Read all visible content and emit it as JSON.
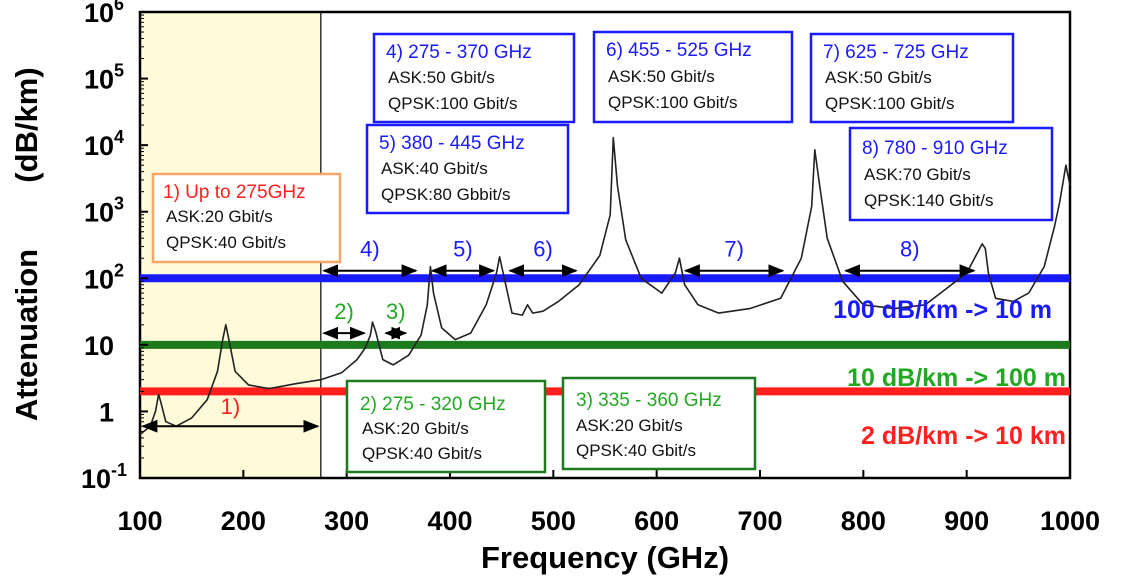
{
  "colors": {
    "allocated_band": "#fffad8",
    "curve": "#222222",
    "line_100": "#1a1aff",
    "line_10": "#1e7a1e",
    "line_2": "#ff1f1f",
    "box_blue": "#1a1aff",
    "box_green": "#1e7a1e",
    "box_orange": "#f4a66b",
    "text_red": "#ff2020",
    "text_blue": "#1a1aff",
    "text_green": "#22a822"
  },
  "chart_data": {
    "type": "line",
    "xlabel": "Frequency (GHz)",
    "ylabel": "Attenuation",
    "ylabel_unit": "(dB/km)",
    "xlim": [
      100,
      1000
    ],
    "ylim": [
      0.1,
      1000000
    ],
    "y_scale": "log",
    "x_ticks": [
      "100",
      "200",
      "300",
      "400",
      "500",
      "600",
      "700",
      "800",
      "900",
      "1000"
    ],
    "x_tick_values": [
      100,
      200,
      300,
      400,
      500,
      600,
      700,
      800,
      900,
      1000
    ],
    "y_ticks": [
      {
        "base": "10",
        "exp": "6"
      },
      {
        "base": "10",
        "exp": "5"
      },
      {
        "base": "10",
        "exp": "4"
      },
      {
        "base": "10",
        "exp": "3"
      },
      {
        "base": "10",
        "exp": "2"
      },
      {
        "base": "10",
        "exp": ""
      },
      {
        "base": "1",
        "exp": ""
      },
      {
        "base": "10",
        "exp": "-1"
      }
    ],
    "y_tick_values": [
      1000000,
      100000,
      10000,
      1000,
      100,
      10,
      1,
      0.1
    ],
    "series": [
      {
        "x": [
          100,
          110,
          115,
          118,
          120,
          125,
          135,
          150,
          165,
          175,
          180,
          183,
          186,
          192,
          205,
          225,
          250,
          275,
          295,
          310,
          318,
          323,
          325,
          328,
          335,
          345,
          360,
          372,
          378,
          381,
          384,
          392,
          405,
          420,
          435,
          445,
          448,
          452,
          460,
          470,
          475,
          480,
          490,
          505,
          525,
          545,
          555,
          558,
          562,
          570,
          585,
          605,
          618,
          622,
          627,
          640,
          660,
          690,
          720,
          740,
          750,
          753,
          757,
          765,
          780,
          800,
          830,
          860,
          900,
          915,
          918,
          921,
          928,
          945,
          960,
          975,
          985,
          990,
          996,
          1000
        ],
        "y": [
          0.45,
          0.6,
          1.0,
          1.8,
          1.4,
          0.7,
          0.6,
          0.8,
          1.5,
          4.0,
          12,
          20,
          12,
          4.0,
          2.5,
          2.2,
          2.6,
          3.0,
          3.8,
          6.0,
          9.0,
          14,
          22,
          16,
          6.0,
          5.0,
          7.0,
          14,
          40,
          150,
          60,
          18,
          12,
          15,
          40,
          120,
          210,
          110,
          30,
          28,
          40,
          30,
          32,
          45,
          80,
          220,
          900,
          13000,
          2500,
          380,
          100,
          60,
          120,
          200,
          80,
          40,
          30,
          35,
          50,
          200,
          1200,
          8500,
          3000,
          400,
          90,
          40,
          35,
          40,
          120,
          330,
          280,
          120,
          50,
          45,
          60,
          150,
          600,
          1400,
          5000,
          2500
        ]
      }
    ],
    "allocated_region": {
      "x_start": 100,
      "x_end": 275
    },
    "reference_lines": [
      {
        "y": 100,
        "label": "100 dB/km -> 10 m"
      },
      {
        "y": 10,
        "label": "10 dB/km -> 100 m"
      },
      {
        "y": 2,
        "label": "2 dB/km -> 10 km"
      }
    ],
    "windows": [
      {
        "num": "1)",
        "x_start": 100,
        "x_end": 275,
        "y": 0.6
      },
      {
        "num": "2)",
        "x_start": 275,
        "x_end": 320,
        "y": 15
      },
      {
        "num": "3)",
        "x_start": 335,
        "x_end": 360,
        "y": 15
      },
      {
        "num": "4)",
        "x_start": 275,
        "x_end": 370,
        "y": 130
      },
      {
        "num": "5)",
        "x_start": 380,
        "x_end": 445,
        "y": 130
      },
      {
        "num": "6)",
        "x_start": 455,
        "x_end": 525,
        "y": 130
      },
      {
        "num": "7)",
        "x_start": 625,
        "x_end": 725,
        "y": 130
      },
      {
        "num": "8)",
        "x_start": 780,
        "x_end": 910,
        "y": 130
      }
    ],
    "boxes": [
      {
        "id": "1",
        "title": "1) Up to 275GHz",
        "line1": "ASK:20 Gbit/s",
        "line2": "QPSK:40 Gbit/s",
        "color": "orange"
      },
      {
        "id": "2",
        "title": "2) 275 - 320 GHz",
        "line1": "ASK:20 Gbit/s",
        "line2": "QPSK:40 Gbit/s",
        "color": "green"
      },
      {
        "id": "3",
        "title": "3) 335 - 360 GHz",
        "line1": "ASK:20 Gbit/s",
        "line2": "QPSK:40 Gbit/s",
        "color": "green"
      },
      {
        "id": "4",
        "title": "4)  275 - 370 GHz",
        "line1": "ASK:50 Gbit/s",
        "line2": "QPSK:100 Gbit/s",
        "color": "blue"
      },
      {
        "id": "5",
        "title": "5) 380 - 445 GHz",
        "line1": "ASK:40 Gbit/s",
        "line2": "QPSK:80 Gbbit/s",
        "color": "blue"
      },
      {
        "id": "6",
        "title": "6) 455 - 525 GHz",
        "line1": "ASK:50 Gbit/s",
        "line2": "QPSK:100 Gbit/s",
        "color": "blue"
      },
      {
        "id": "7",
        "title": "7) 625 - 725 GHz",
        "line1": "ASK:50 Gbit/s",
        "line2": "QPSK:100 Gbit/s",
        "color": "blue"
      },
      {
        "id": "8",
        "title": "8) 780 - 910 GHz",
        "line1": "ASK:70 Gbit/s",
        "line2": "QPSK:140 Gbit/s",
        "color": "blue"
      }
    ]
  }
}
